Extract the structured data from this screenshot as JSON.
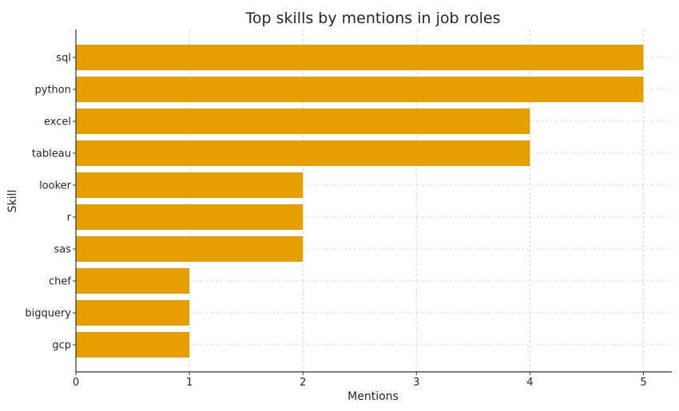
{
  "chart_data": {
    "type": "bar",
    "orientation": "horizontal",
    "title": "Top skills by mentions in job roles",
    "xlabel": "Mentions",
    "ylabel": "Skill",
    "categories": [
      "sql",
      "python",
      "excel",
      "tableau",
      "looker",
      "r",
      "sas",
      "chef",
      "bigquery",
      "gcp"
    ],
    "values": [
      5,
      5,
      4,
      4,
      2,
      2,
      2,
      1,
      1,
      1
    ],
    "xlim": [
      0,
      5.25
    ],
    "xticks": [
      0,
      1,
      2,
      3,
      4,
      5
    ],
    "grid": true,
    "bar_color": "#E69F00"
  }
}
